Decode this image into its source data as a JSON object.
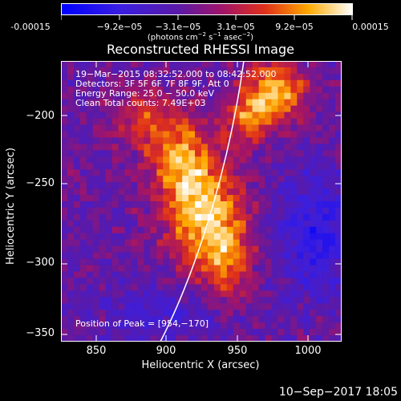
{
  "colorbar": {
    "ticks": [
      "-0.00015",
      "−9.2e−05",
      "−3.1e−05",
      "3.1e−05",
      "9.2e−05",
      "0.00015"
    ],
    "units_main": "(photons cm",
    "units_sup1": "−2",
    "units_mid": " s",
    "units_sup2": "−1",
    "units_mid2": " asec",
    "units_sup3": "−2",
    "units_end": ")"
  },
  "image": {
    "title": "Reconstructed RHESSI Image",
    "xaxis_title": "Heliocentric X (arcsec)",
    "yaxis_title": "Heliocentric Y (arcsec)",
    "x_ticks": [
      "850",
      "900",
      "950",
      "1000"
    ],
    "y_ticks": [
      "−200",
      "−250",
      "−300",
      "−350"
    ],
    "annotations": {
      "time_range": "19−Mar−2015 08:32:52.000 to 08:42:52.000",
      "detectors": "Detectors: 3F 5F 6F 7F 8F 9F, Att 0",
      "energy": "Energy Range: 25.0 − 50.0 keV",
      "clean": "Clean     Total counts: 7.49E+03",
      "peak": "Position of Peak = [954,−170]"
    }
  },
  "footer": {
    "date": "10−Sep−2017 18:05"
  },
  "chart_data": {
    "type": "heatmap",
    "title": "Reconstructed RHESSI Image",
    "xlabel": "Heliocentric X (arcsec)",
    "ylabel": "Heliocentric Y (arcsec)",
    "xlim": [
      827,
      1017
    ],
    "ylim": [
      -357,
      -152
    ],
    "colorbar_range": [
      -0.00015,
      0.00015
    ],
    "peak_position": [
      954,
      -170
    ]
  }
}
